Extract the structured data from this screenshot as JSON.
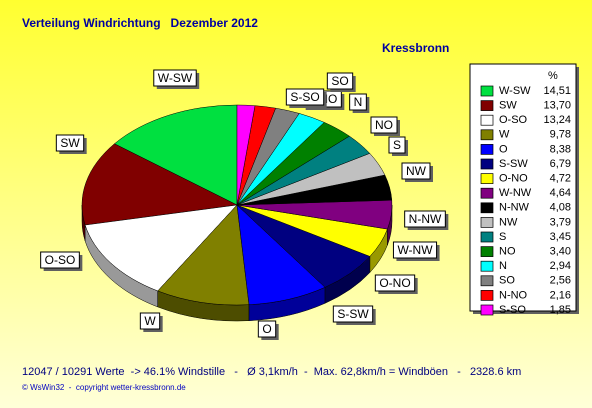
{
  "chart_data": {
    "type": "pie3d",
    "title": "Verteilung Windrichtung   Dezember 2012",
    "subtitle": "Kressbronn",
    "legend_header": "%",
    "categories": [
      "W-SW",
      "SW",
      "O-SO",
      "W",
      "O",
      "S-SW",
      "O-NO",
      "W-NW",
      "N-NW",
      "NW",
      "S",
      "NO",
      "N",
      "SO",
      "N-NO",
      "S-SO"
    ],
    "values": [
      14.51,
      13.7,
      13.24,
      9.78,
      8.38,
      6.79,
      4.72,
      4.64,
      4.08,
      3.79,
      3.45,
      3.4,
      2.94,
      2.56,
      2.16,
      1.85
    ],
    "value_labels": [
      "14,51",
      "13,70",
      "13,24",
      "9,78",
      "8,38",
      "6,79",
      "4,72",
      "4,64",
      "4,08",
      "3,79",
      "3,45",
      "3,40",
      "2,94",
      "2,56",
      "2,16",
      "1,85"
    ],
    "colors": [
      "#00e040",
      "#800000",
      "#ffffff",
      "#808000",
      "#0000ff",
      "#000080",
      "#ffff00",
      "#800080",
      "#000000",
      "#c0c0c0",
      "#008080",
      "#008000",
      "#00ffff",
      "#808080",
      "#ff0000",
      "#ff00ff"
    ],
    "footer": "12047 / 10291 Werte  -> 46.1% Windstille   -   Ø 3,1km/h  -  Max. 62,8km/h = Windböen   -   2328.6 km",
    "copyright": "© WsWin32  -  copyright wetter-kressbronn.de"
  }
}
